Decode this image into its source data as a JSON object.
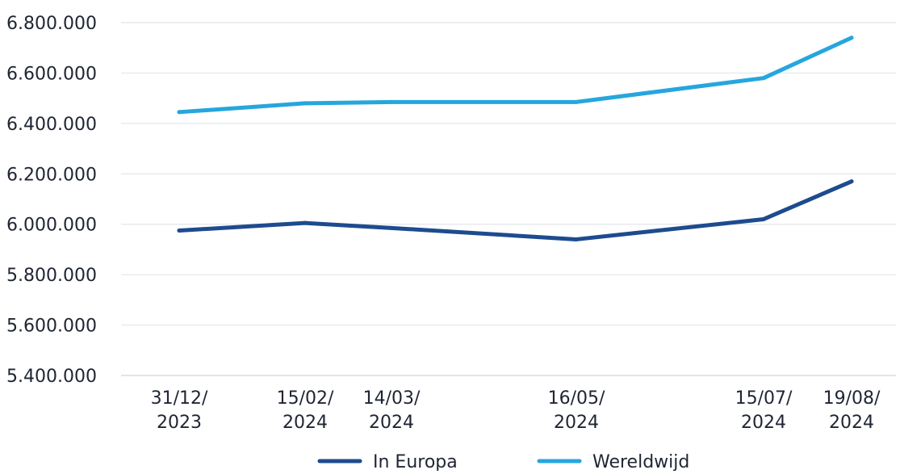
{
  "chart_data": {
    "type": "line",
    "title": "",
    "xlabel": "",
    "ylabel": "",
    "x": [
      "31/12/2023",
      "15/02/2024",
      "14/03/2024",
      "16/05/2024",
      "15/07/2024",
      "19/08/2024"
    ],
    "x_tick_labels": [
      [
        "31/12/",
        "2023"
      ],
      [
        "15/02/",
        "2024"
      ],
      [
        "14/03/",
        "2024"
      ],
      [
        "16/05/",
        "2024"
      ],
      [
        "15/07/",
        "2024"
      ],
      [
        "19/08/",
        "2024"
      ]
    ],
    "y_ticks": [
      5400000,
      5600000,
      5800000,
      6000000,
      6200000,
      6400000,
      6600000,
      6800000
    ],
    "y_tick_labels": [
      "5.400.000",
      "5.600.000",
      "5.800.000",
      "6.000.000",
      "6.200.000",
      "6.400.000",
      "6.600.000",
      "6.800.000"
    ],
    "ylim": [
      5400000,
      6800000
    ],
    "grid": true,
    "legend_position": "bottom",
    "series": [
      {
        "name": "In Europa",
        "color": "#1d4b8f",
        "values": [
          5975000,
          6005000,
          5985000,
          5940000,
          6020000,
          6170000
        ]
      },
      {
        "name": "Wereldwijd",
        "color": "#26a6dd",
        "values": [
          6445000,
          6480000,
          6485000,
          6485000,
          6580000,
          6740000
        ]
      }
    ]
  }
}
